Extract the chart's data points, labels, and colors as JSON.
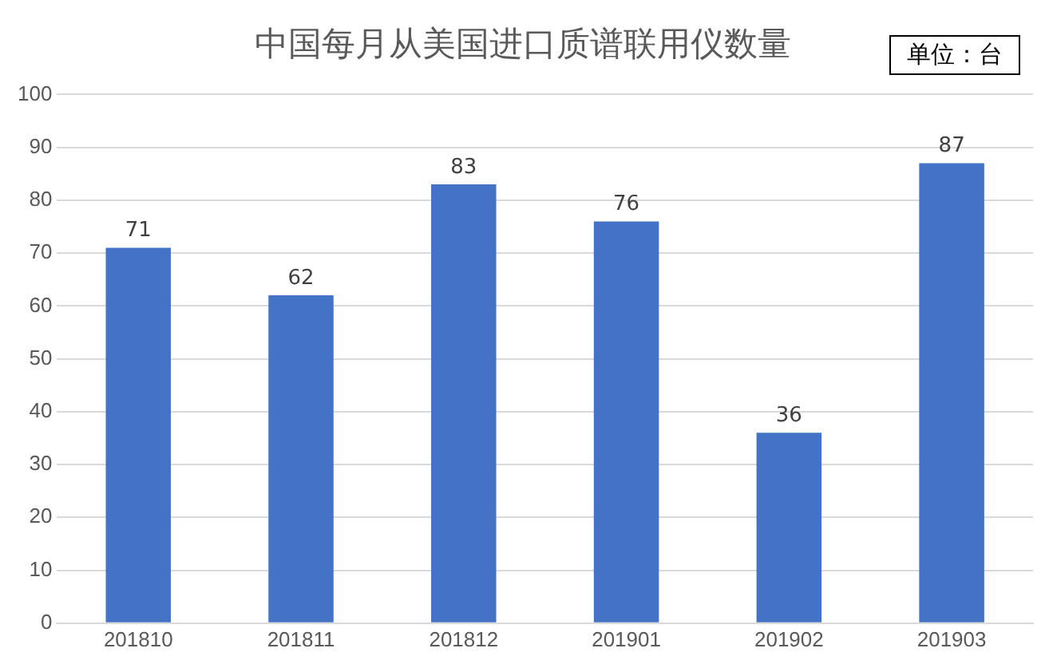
{
  "chart_data": {
    "type": "bar",
    "title": "中国每月从美国进口质谱联用仪数量",
    "annotations": [
      "单位：台"
    ],
    "categories": [
      "201810",
      "201811",
      "201812",
      "201901",
      "201902",
      "201903"
    ],
    "values": [
      71,
      62,
      83,
      76,
      36,
      87
    ],
    "color": "#4472c4",
    "ylim": [
      0,
      100
    ],
    "yticks": [
      0,
      10,
      20,
      30,
      40,
      50,
      60,
      70,
      80,
      90,
      100
    ],
    "grid": "y",
    "data_labels": true,
    "legend": false
  }
}
